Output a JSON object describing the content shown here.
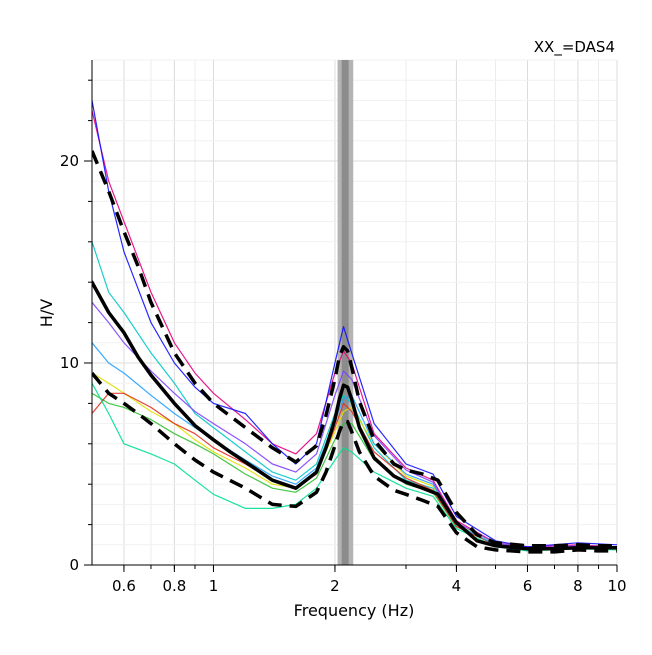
{
  "chart_data": {
    "type": "line",
    "title": "XX_=DAS4",
    "xlabel": "Frequency (Hz)",
    "ylabel": "H/V",
    "xscale": "log",
    "xlim": [
      0.5,
      10
    ],
    "ylim": [
      0,
      25
    ],
    "x_ticks": [
      {
        "v": 0.6,
        "label": "0.6"
      },
      {
        "v": 0.8,
        "label": "0.8"
      },
      {
        "v": 1,
        "label": "1"
      },
      {
        "v": 2,
        "label": "2"
      },
      {
        "v": 4,
        "label": "4"
      },
      {
        "v": 6,
        "label": "6"
      },
      {
        "v": 8,
        "label": "8"
      },
      {
        "v": 10,
        "label": "10"
      }
    ],
    "y_ticks": [
      {
        "v": 0,
        "label": "0"
      },
      {
        "v": 10,
        "label": "10"
      },
      {
        "v": 20,
        "label": "20"
      }
    ],
    "grid": true,
    "peak_band": {
      "f0_min": 2.03,
      "f0_max": 2.22,
      "f0": 2.12
    },
    "series": [
      {
        "style": "average",
        "color": "#000000",
        "x": [
          0.5,
          0.55,
          0.6,
          0.65,
          0.7,
          0.8,
          0.9,
          1.0,
          1.1,
          1.2,
          1.4,
          1.6,
          1.8,
          1.9,
          2.0,
          2.05,
          2.1,
          2.15,
          2.2,
          2.3,
          2.5,
          2.8,
          3.0,
          3.3,
          3.6,
          4.0,
          4.5,
          5.0,
          6.0,
          7.0,
          8.0,
          9.0,
          10.0
        ],
        "y": [
          14.0,
          12.5,
          11.5,
          10.3,
          9.4,
          8.0,
          6.9,
          6.2,
          5.6,
          5.1,
          4.2,
          3.8,
          4.6,
          5.8,
          7.2,
          8.2,
          8.9,
          8.8,
          8.2,
          6.8,
          5.3,
          4.4,
          4.1,
          3.8,
          3.5,
          2.1,
          1.2,
          0.95,
          0.8,
          0.8,
          0.85,
          0.85,
          0.85
        ]
      },
      {
        "style": "stddev",
        "color": "#000000",
        "x": [
          0.5,
          0.55,
          0.6,
          0.65,
          0.7,
          0.8,
          0.9,
          1.0,
          1.2,
          1.4,
          1.6,
          1.8,
          1.9,
          2.0,
          2.05,
          2.1,
          2.15,
          2.2,
          2.3,
          2.5,
          2.8,
          3.0,
          3.3,
          3.6,
          4.0,
          4.5,
          5.0,
          6.0,
          7.0,
          8.0,
          9.0,
          10.0
        ],
        "y": [
          20.5,
          18.5,
          16.5,
          14.8,
          13.0,
          10.5,
          9.0,
          8.0,
          6.8,
          5.8,
          5.1,
          5.9,
          7.4,
          9.2,
          10.3,
          10.8,
          10.6,
          9.8,
          8.1,
          6.2,
          5.0,
          4.7,
          4.5,
          4.2,
          2.6,
          1.5,
          1.1,
          0.95,
          0.95,
          1.0,
          0.95,
          0.95
        ]
      },
      {
        "style": "stddev",
        "color": "#000000",
        "x": [
          0.5,
          0.55,
          0.6,
          0.65,
          0.7,
          0.8,
          0.9,
          1.0,
          1.2,
          1.4,
          1.6,
          1.8,
          1.9,
          2.0,
          2.05,
          2.1,
          2.15,
          2.2,
          2.3,
          2.5,
          2.8,
          3.0,
          3.3,
          3.6,
          4.0,
          4.5,
          5.0,
          6.0,
          7.0,
          8.0,
          9.0,
          10.0
        ],
        "y": [
          9.5,
          8.5,
          8.0,
          7.5,
          7.0,
          6.0,
          5.2,
          4.6,
          3.8,
          3.0,
          2.9,
          3.6,
          4.6,
          5.9,
          6.6,
          7.1,
          7.1,
          6.6,
          5.6,
          4.4,
          3.7,
          3.5,
          3.2,
          2.9,
          1.6,
          0.9,
          0.75,
          0.65,
          0.65,
          0.75,
          0.7,
          0.7
        ]
      },
      {
        "style": "window",
        "color": "#e6007e",
        "x": [
          0.5,
          0.55,
          0.6,
          0.7,
          0.8,
          0.9,
          1.0,
          1.2,
          1.4,
          1.6,
          1.8,
          2.0,
          2.1,
          2.2,
          2.5,
          3.0,
          3.5,
          4.0,
          5.0,
          6.0,
          8.0,
          10.0
        ],
        "y": [
          22.5,
          19.0,
          17.0,
          13.5,
          11.0,
          9.5,
          8.5,
          7.2,
          6.0,
          5.5,
          6.5,
          9.5,
          10.6,
          10.0,
          6.5,
          4.8,
          4.2,
          2.2,
          1.1,
          0.9,
          1.0,
          0.9
        ]
      },
      {
        "style": "window",
        "color": "#1010ff",
        "x": [
          0.5,
          0.55,
          0.6,
          0.7,
          0.8,
          0.9,
          1.0,
          1.2,
          1.4,
          1.6,
          1.8,
          2.0,
          2.1,
          2.2,
          2.5,
          3.0,
          3.5,
          4.0,
          5.0,
          6.0,
          8.0,
          10.0
        ],
        "y": [
          23.0,
          18.5,
          15.5,
          12.0,
          10.0,
          8.8,
          8.0,
          7.5,
          6.0,
          5.0,
          6.0,
          10.0,
          11.8,
          10.5,
          7.0,
          5.0,
          4.5,
          2.4,
          1.2,
          0.9,
          1.1,
          1.0
        ]
      },
      {
        "style": "window",
        "color": "#00c8c8",
        "x": [
          0.5,
          0.55,
          0.6,
          0.7,
          0.8,
          0.9,
          1.0,
          1.2,
          1.4,
          1.6,
          1.8,
          2.0,
          2.1,
          2.2,
          2.5,
          3.0,
          3.5,
          4.0,
          5.0,
          6.0,
          8.0,
          10.0
        ],
        "y": [
          16.0,
          13.5,
          12.5,
          10.5,
          9.0,
          7.5,
          6.8,
          5.6,
          4.6,
          4.2,
          5.0,
          7.5,
          8.4,
          8.0,
          5.8,
          4.2,
          3.8,
          2.0,
          1.0,
          0.8,
          0.9,
          0.85
        ]
      },
      {
        "style": "window",
        "color": "#30c030",
        "x": [
          0.5,
          0.55,
          0.6,
          0.7,
          0.8,
          0.9,
          1.0,
          1.2,
          1.4,
          1.6,
          1.8,
          2.0,
          2.1,
          2.2,
          2.5,
          3.0,
          3.5,
          4.0,
          5.0,
          6.0,
          8.0,
          10.0
        ],
        "y": [
          8.5,
          8.0,
          7.8,
          7.2,
          6.5,
          6.0,
          5.5,
          4.5,
          3.8,
          3.6,
          4.3,
          6.2,
          7.0,
          7.0,
          5.2,
          4.0,
          3.6,
          1.9,
          1.0,
          0.75,
          0.85,
          0.8
        ]
      },
      {
        "style": "window",
        "color": "#e0e000",
        "x": [
          0.5,
          0.55,
          0.6,
          0.7,
          0.8,
          0.9,
          1.0,
          1.2,
          1.4,
          1.6,
          1.8,
          2.0,
          2.1,
          2.2,
          2.5,
          3.0,
          3.5,
          4.0,
          5.0,
          6.0,
          8.0,
          10.0
        ],
        "y": [
          9.5,
          9.0,
          8.5,
          7.6,
          7.0,
          6.2,
          5.6,
          4.8,
          4.0,
          3.8,
          4.6,
          6.6,
          7.6,
          7.8,
          6.0,
          4.4,
          3.9,
          2.0,
          1.1,
          0.8,
          0.9,
          0.85
        ]
      },
      {
        "style": "window",
        "color": "#e03020",
        "x": [
          0.5,
          0.55,
          0.6,
          0.7,
          0.8,
          0.9,
          1.0,
          1.2,
          1.4,
          1.6,
          1.8,
          2.0,
          2.1,
          2.2,
          2.5,
          3.0,
          3.5,
          4.0,
          5.0,
          6.0,
          8.0,
          10.0
        ],
        "y": [
          7.5,
          8.5,
          8.5,
          7.8,
          7.0,
          6.5,
          5.8,
          5.0,
          4.2,
          3.8,
          4.5,
          6.8,
          8.0,
          7.6,
          5.6,
          4.3,
          3.7,
          1.9,
          1.0,
          0.8,
          0.85,
          0.8
        ]
      },
      {
        "style": "window",
        "color": "#8040ff",
        "x": [
          0.5,
          0.55,
          0.6,
          0.7,
          0.8,
          0.9,
          1.0,
          1.2,
          1.4,
          1.6,
          1.8,
          2.0,
          2.1,
          2.2,
          2.5,
          3.0,
          3.5,
          4.0,
          5.0,
          6.0,
          8.0,
          10.0
        ],
        "y": [
          13.0,
          12.0,
          11.0,
          9.6,
          8.5,
          7.6,
          7.0,
          6.0,
          5.0,
          4.6,
          5.5,
          8.4,
          9.6,
          9.2,
          6.4,
          4.7,
          4.1,
          2.1,
          1.1,
          0.85,
          0.95,
          0.9
        ]
      },
      {
        "style": "window",
        "color": "#20a0ff",
        "x": [
          0.5,
          0.55,
          0.6,
          0.7,
          0.8,
          0.9,
          1.0,
          1.2,
          1.4,
          1.6,
          1.8,
          2.0,
          2.1,
          2.2,
          2.5,
          3.0,
          3.5,
          4.0,
          5.0,
          6.0,
          8.0,
          10.0
        ],
        "y": [
          11.0,
          10.0,
          9.5,
          8.4,
          7.5,
          6.8,
          6.2,
          5.2,
          4.4,
          4.0,
          4.8,
          7.2,
          8.2,
          8.4,
          6.0,
          4.5,
          4.0,
          2.0,
          1.0,
          0.8,
          0.9,
          0.85
        ]
      },
      {
        "style": "window",
        "color": "#00e090",
        "x": [
          0.5,
          0.55,
          0.6,
          0.7,
          0.8,
          0.9,
          1.0,
          1.2,
          1.4,
          1.6,
          1.8,
          2.0,
          2.1,
          2.2,
          2.5,
          3.0,
          3.5,
          4.0,
          5.0,
          6.0,
          8.0,
          10.0
        ],
        "y": [
          9.0,
          7.5,
          6.0,
          5.5,
          5.0,
          4.2,
          3.5,
          2.8,
          2.8,
          3.0,
          3.8,
          5.2,
          5.8,
          5.6,
          4.6,
          3.8,
          3.4,
          1.8,
          0.9,
          0.7,
          0.8,
          0.75
        ]
      }
    ]
  }
}
